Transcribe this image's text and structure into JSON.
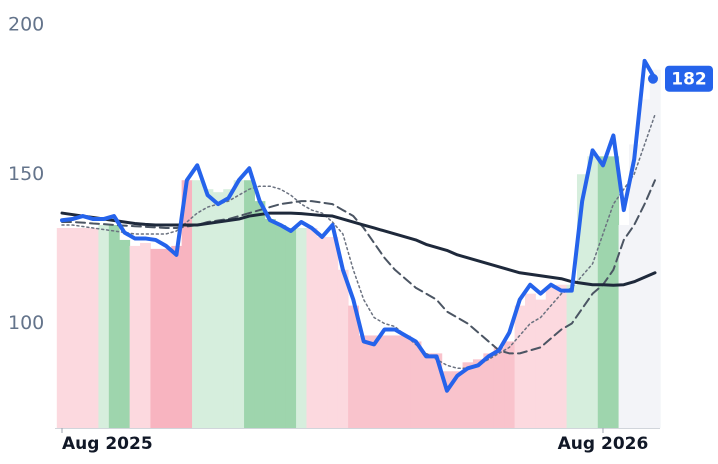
{
  "chart_data": {
    "type": "line",
    "x": [
      0,
      1,
      2,
      3,
      4,
      5,
      6,
      7,
      8,
      9,
      10,
      11,
      12,
      13,
      14,
      15,
      16,
      17,
      18,
      19,
      20,
      21,
      22,
      23,
      24,
      25,
      26,
      27,
      28,
      29,
      30,
      31,
      32,
      33,
      34,
      35,
      36,
      37,
      38,
      39,
      40,
      41,
      42,
      43,
      44,
      45,
      46,
      47,
      48,
      49,
      50,
      51,
      52,
      53,
      54,
      55,
      56,
      57
    ],
    "xlim": [
      0,
      57
    ],
    "xticks": [
      {
        "value": 0,
        "label": "Aug 2025"
      },
      {
        "value": 52,
        "label": "Aug 2026"
      }
    ],
    "ylim": [
      65,
      200
    ],
    "yticks": [
      100,
      150,
      200
    ],
    "series": [
      {
        "color": "#2563eb",
        "line_style": "solid",
        "values": [
          134.6,
          135,
          136,
          135,
          135,
          136,
          130.5,
          128.5,
          128.5,
          128,
          126,
          123,
          148,
          153,
          143,
          140,
          142,
          148,
          152,
          141,
          134.6,
          133,
          131,
          134,
          132,
          129,
          133,
          118,
          108,
          94,
          93,
          98,
          98,
          96,
          94,
          89,
          89,
          77.5,
          82.5,
          85,
          86,
          89,
          91,
          97,
          108,
          113,
          110,
          113,
          111,
          111,
          141,
          158,
          153,
          163,
          138,
          155,
          188,
          182
        ]
      },
      {
        "color": "#1e293b",
        "line_style": "solid",
        "values": [
          137,
          136.5,
          136,
          135.5,
          135,
          134.5,
          134,
          133.5,
          133.2,
          133,
          133,
          133,
          133,
          133,
          133.5,
          134,
          134.5,
          135,
          136,
          136.5,
          137,
          137,
          137,
          136.8,
          136.5,
          136.2,
          136,
          135,
          134,
          133,
          132,
          131,
          130,
          129,
          128,
          126.5,
          125.5,
          124.5,
          123,
          122,
          121,
          120,
          119,
          118,
          117,
          116.5,
          116,
          115.5,
          115,
          114,
          113.5,
          113,
          113,
          112.8,
          113,
          114,
          115.5,
          117
        ]
      },
      {
        "color": "#4b5563",
        "line_style": "dashed",
        "values": [
          134,
          134,
          133.8,
          133.5,
          133.3,
          133,
          132.8,
          132.6,
          132.4,
          132.2,
          132,
          132,
          132.5,
          133,
          134,
          134.5,
          135,
          136,
          137,
          138,
          139,
          140,
          140.5,
          141,
          141,
          140.5,
          140,
          138,
          136,
          132,
          127,
          122,
          118,
          115,
          112,
          110,
          108,
          104,
          102,
          100,
          97,
          94,
          91,
          90,
          90,
          91,
          92,
          95,
          98,
          100,
          105,
          110,
          113,
          118,
          128,
          133,
          140,
          148
        ]
      },
      {
        "color": "#6b7280",
        "line_style": "dotted",
        "values": [
          133,
          133,
          132.5,
          132,
          131.5,
          131,
          130.5,
          130,
          130,
          130,
          130,
          131,
          134,
          137,
          139,
          140,
          141,
          143,
          145,
          146,
          146,
          145,
          143,
          140,
          138,
          137,
          134,
          130,
          118,
          108,
          102,
          100,
          99,
          96,
          93,
          90,
          88,
          86,
          85,
          85,
          86,
          88,
          90,
          92,
          96,
          100,
          102,
          106,
          110,
          112,
          116,
          120,
          130,
          140,
          145,
          150,
          160,
          170
        ]
      }
    ],
    "bands": [
      132,
      132,
      132,
      132,
      133,
      133,
      128,
      126,
      127,
      125,
      125,
      126,
      148,
      148,
      145,
      144,
      145,
      148,
      148,
      141,
      135,
      133,
      132,
      132,
      132,
      129,
      129,
      118,
      106,
      96,
      96,
      96,
      96,
      96,
      94,
      90,
      90,
      84,
      84,
      87,
      88,
      90,
      92,
      94,
      106,
      110,
      108,
      112,
      113,
      113,
      150,
      156,
      156,
      156,
      133,
      160,
      175,
      185
    ],
    "band_colors": [
      "#fcd9df",
      "#fcd9df",
      "#fcd9df",
      "#fcd9df",
      "#d6eedd",
      "#9ed5ad",
      "#9ed5ad",
      "#fcd9df",
      "#fcd9df",
      "#f8b4c0",
      "#f8b4c0",
      "#f8b4c0",
      "#f8b4c0",
      "#d6eedd",
      "#d6eedd",
      "#d6eedd",
      "#d6eedd",
      "#d6eedd",
      "#9ed5ad",
      "#9ed5ad",
      "#9ed5ad",
      "#9ed5ad",
      "#9ed5ad",
      "#d6eedd",
      "#fcd9df",
      "#fcd9df",
      "#fcd9df",
      "#fcd9df",
      "#f9c3cc",
      "#f9c3cc",
      "#f9c3cc",
      "#f9c3cc",
      "#f9c3cc",
      "#f9c3cc",
      "#f9c3cc",
      "#f9c3cc",
      "#f9c3cc",
      "#f9c3cc",
      "#f9c3cc",
      "#f9c3cc",
      "#f9c3cc",
      "#f9c3cc",
      "#f9c3cc",
      "#f9c3cc",
      "#fcd9df",
      "#fcd9df",
      "#fcd9df",
      "#fcd9df",
      "#fcd9df",
      "#d6eedd",
      "#d6eedd",
      "#d6eedd",
      "#9ed5ad",
      "#9ed5ad",
      "#f3f4f8",
      "#f3f4f8",
      "#f3f4f8",
      "#f3f4f8"
    ]
  }
}
